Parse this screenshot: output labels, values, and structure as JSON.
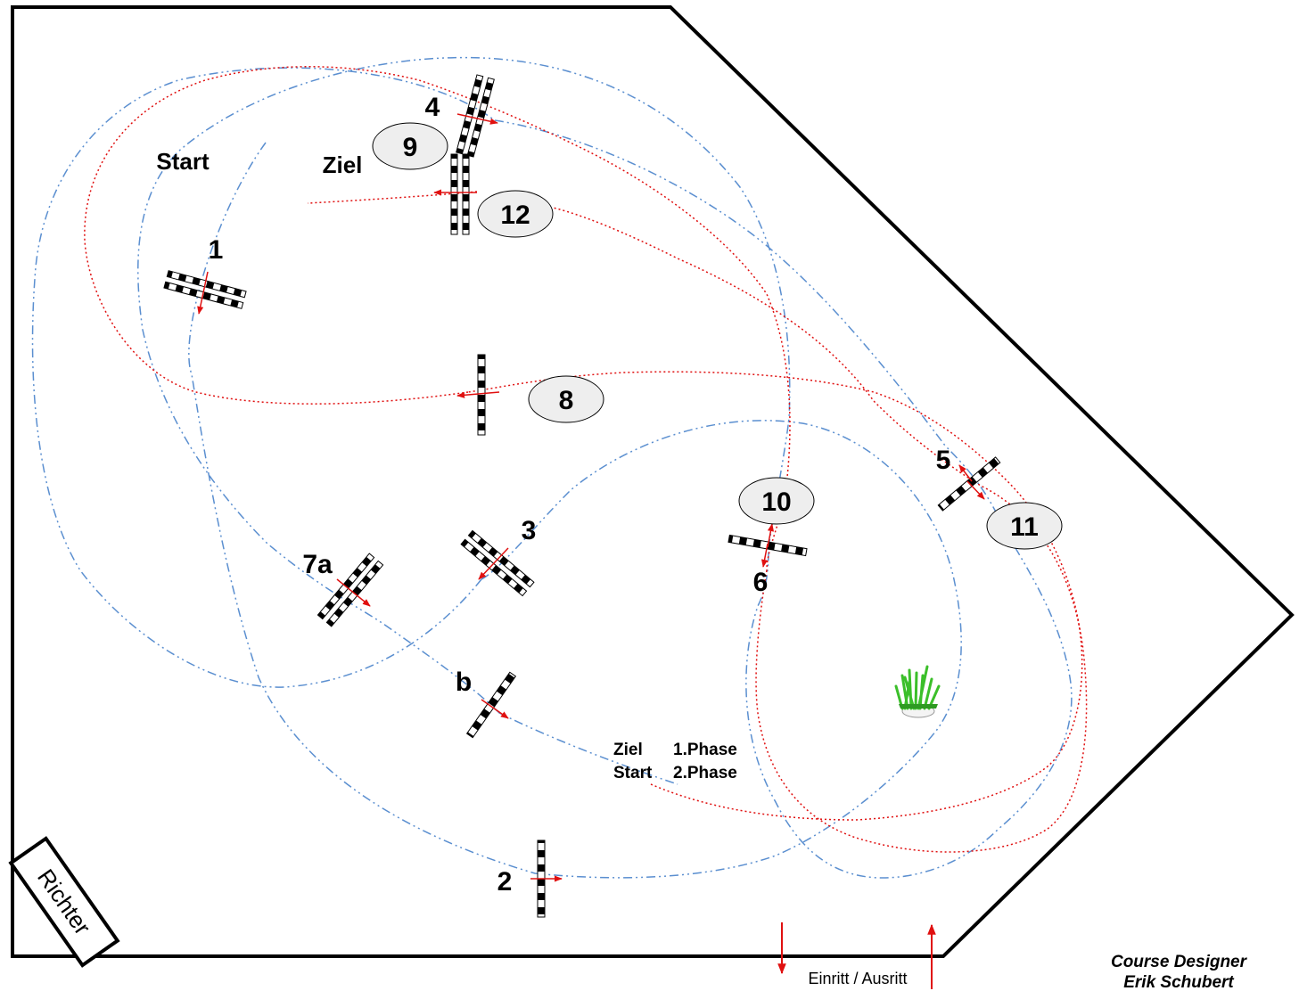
{
  "labels": {
    "start": "Start",
    "ziel": "Ziel",
    "richter": "Richter",
    "phase_ziel": "Ziel",
    "phase_1": "1.Phase",
    "phase_start": "Start",
    "phase_2": "2.Phase",
    "entry": "Einritt / Ausritt",
    "designer_title": "Course Designer",
    "designer_name": "Erik Schubert"
  },
  "obstacles_phase1": {
    "o1": "1",
    "o2": "2",
    "o3": "3",
    "o4": "4",
    "o5": "5",
    "o6": "6",
    "o7a": "7a",
    "ob": "b"
  },
  "obstacles_phase2": {
    "o8": "8",
    "o9": "9",
    "o10": "10",
    "o11": "11",
    "o12": "12"
  },
  "colors": {
    "arena": "#000000",
    "route_phase1": "#5b8fd0",
    "route_phase2": "#e01010",
    "arrow": "#e01010",
    "bubble_fill": "#eeeeee",
    "plant": "#3bbf2a"
  }
}
